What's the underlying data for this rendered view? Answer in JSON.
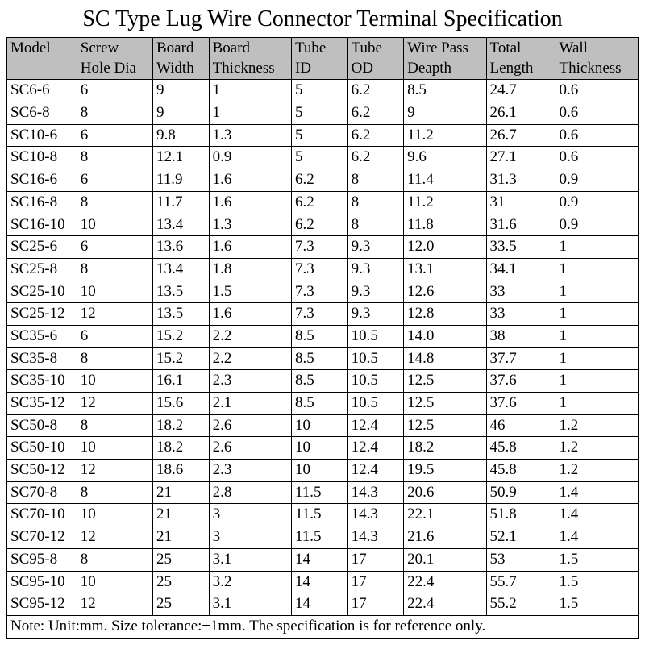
{
  "title": "SC Type Lug Wire Connector Terminal Specification",
  "columns": [
    "Model",
    "Screw Hole Dia",
    "Board Width",
    "Board Thickness",
    "Tube ID",
    "Tube OD",
    "Wire Pass Deapth",
    "Total Length",
    "Wall Thickness"
  ],
  "rows": [
    [
      "SC6-6",
      "6",
      "9",
      "1",
      "5",
      "6.2",
      "8.5",
      "24.7",
      "0.6"
    ],
    [
      "SC6-8",
      "8",
      "9",
      "1",
      "5",
      "6.2",
      "9",
      "26.1",
      "0.6"
    ],
    [
      "SC10-6",
      "6",
      "9.8",
      "1.3",
      "5",
      "6.2",
      "11.2",
      "26.7",
      "0.6"
    ],
    [
      "SC10-8",
      "8",
      "12.1",
      "0.9",
      "5",
      "6.2",
      "9.6",
      "27.1",
      "0.6"
    ],
    [
      "SC16-6",
      "6",
      "11.9",
      "1.6",
      "6.2",
      "8",
      "11.4",
      "31.3",
      "0.9"
    ],
    [
      "SC16-8",
      "8",
      "11.7",
      "1.6",
      "6.2",
      "8",
      "11.2",
      "31",
      "0.9"
    ],
    [
      "SC16-10",
      "10",
      "13.4",
      "1.3",
      "6.2",
      "8",
      "11.8",
      "31.6",
      "0.9"
    ],
    [
      "SC25-6",
      "6",
      "13.6",
      "1.6",
      "7.3",
      "9.3",
      "12.0",
      "33.5",
      "1"
    ],
    [
      "SC25-8",
      "8",
      "13.4",
      "1.8",
      "7.3",
      "9.3",
      "13.1",
      "34.1",
      "1"
    ],
    [
      "SC25-10",
      "10",
      "13.5",
      "1.5",
      "7.3",
      "9.3",
      "12.6",
      "33",
      "1"
    ],
    [
      "SC25-12",
      "12",
      "13.5",
      "1.6",
      "7.3",
      "9.3",
      "12.8",
      "33",
      "1"
    ],
    [
      "SC35-6",
      "6",
      "15.2",
      "2.2",
      "8.5",
      "10.5",
      "14.0",
      "38",
      "1"
    ],
    [
      "SC35-8",
      "8",
      "15.2",
      "2.2",
      "8.5",
      "10.5",
      "14.8",
      "37.7",
      "1"
    ],
    [
      "SC35-10",
      "10",
      "16.1",
      "2.3",
      "8.5",
      "10.5",
      "12.5",
      "37.6",
      "1"
    ],
    [
      "SC35-12",
      "12",
      "15.6",
      "2.1",
      "8.5",
      "10.5",
      "12.5",
      "37.6",
      "1"
    ],
    [
      "SC50-8",
      "8",
      "18.2",
      "2.6",
      "10",
      "12.4",
      "12.5",
      "46",
      "1.2"
    ],
    [
      "SC50-10",
      "10",
      "18.2",
      "2.6",
      "10",
      "12.4",
      "18.2",
      "45.8",
      "1.2"
    ],
    [
      "SC50-12",
      "12",
      "18.6",
      "2.3",
      "10",
      "12.4",
      "19.5",
      "45.8",
      "1.2"
    ],
    [
      "SC70-8",
      "8",
      "21",
      "2.8",
      "11.5",
      "14.3",
      "20.6",
      "50.9",
      "1.4"
    ],
    [
      "SC70-10",
      "10",
      "21",
      "3",
      "11.5",
      "14.3",
      "22.1",
      "51.8",
      "1.4"
    ],
    [
      "SC70-12",
      "12",
      "21",
      "3",
      "11.5",
      "14.3",
      "21.6",
      "52.1",
      "1.4"
    ],
    [
      "SC95-8",
      "8",
      "25",
      "3.1",
      "14",
      "17",
      "20.1",
      "53",
      "1.5"
    ],
    [
      "SC95-10",
      "10",
      "25",
      "3.2",
      "14",
      "17",
      "22.4",
      "55.7",
      "1.5"
    ],
    [
      "SC95-12",
      "12",
      "25",
      "3.1",
      "14",
      "17",
      "22.4",
      "55.2",
      "1.5"
    ]
  ],
  "note": "Note: Unit:mm. Size tolerance:±1mm. The specification is for reference only.",
  "style": {
    "header_bg": "#bfbfbf",
    "border_color": "#000000",
    "background_color": "#ffffff",
    "title_fontsize": 28,
    "cell_fontsize": 19,
    "font_family": "Times New Roman",
    "col_widths_pct": [
      10.6,
      11.5,
      8.5,
      12.5,
      8.5,
      8.5,
      12.5,
      10.5,
      12.5
    ]
  }
}
